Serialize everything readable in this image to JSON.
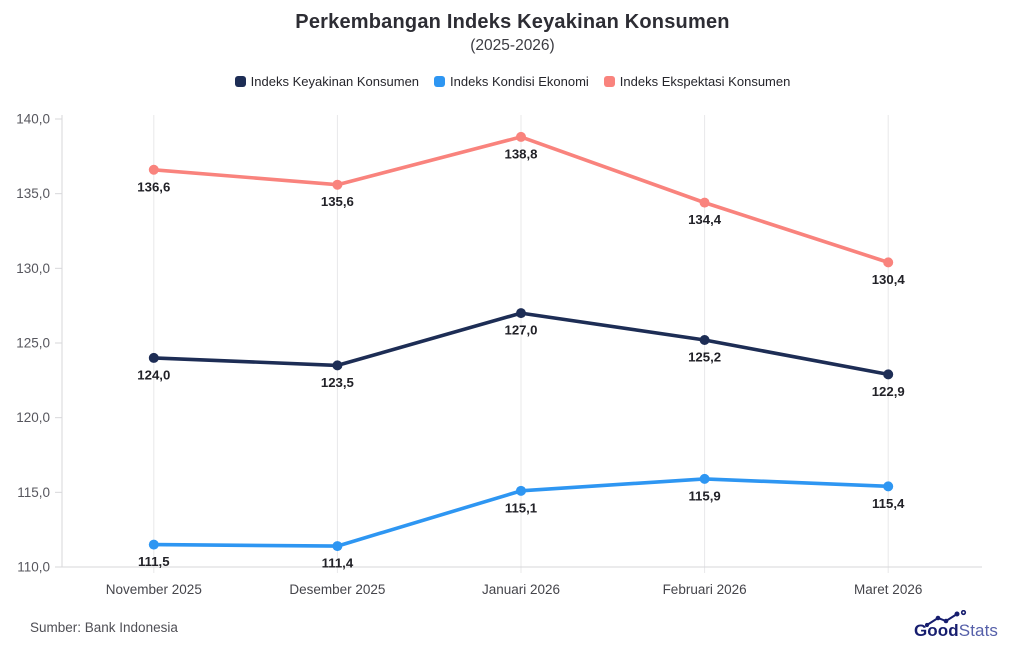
{
  "chart_data": {
    "type": "line",
    "title": "Perkembangan Indeks Keyakinan Konsumen",
    "subtitle": "(2025-2026)",
    "categories": [
      "November 2025",
      "Desember 2025",
      "Januari 2026",
      "Februari 2026",
      "Maret 2026"
    ],
    "series": [
      {
        "name": "Indeks Keyakinan Konsumen",
        "color": "#1d2d55",
        "values": [
          124.0,
          123.5,
          127.0,
          125.2,
          122.9
        ]
      },
      {
        "name": "Indeks Kondisi Ekonomi",
        "color": "#2e96f2",
        "values": [
          111.5,
          111.4,
          115.1,
          115.9,
          115.4
        ]
      },
      {
        "name": "Indeks Ekspektasi Konsumen",
        "color": "#f9837d",
        "values": [
          136.6,
          135.6,
          138.8,
          134.4,
          130.4
        ]
      }
    ],
    "ylim": [
      110,
      140
    ],
    "ytick_step": 5,
    "ytick_labels": [
      "110,0",
      "115,0",
      "120,0",
      "125,0",
      "130,0",
      "135,0",
      "140,0"
    ],
    "decimal_separator": ",",
    "grid": "vertical-only",
    "legend_position": "top",
    "data_labels": "below-points"
  },
  "colors": {
    "gridline": "#e8e8ea",
    "axis": "#d7d7da",
    "ytick_text": "#57575e",
    "xtick_text": "#45454b",
    "data_label_text": "#222228"
  },
  "footer": {
    "source": "Sumber: Bank Indonesia",
    "logo_bold": "Good",
    "logo_light": "Stats"
  }
}
